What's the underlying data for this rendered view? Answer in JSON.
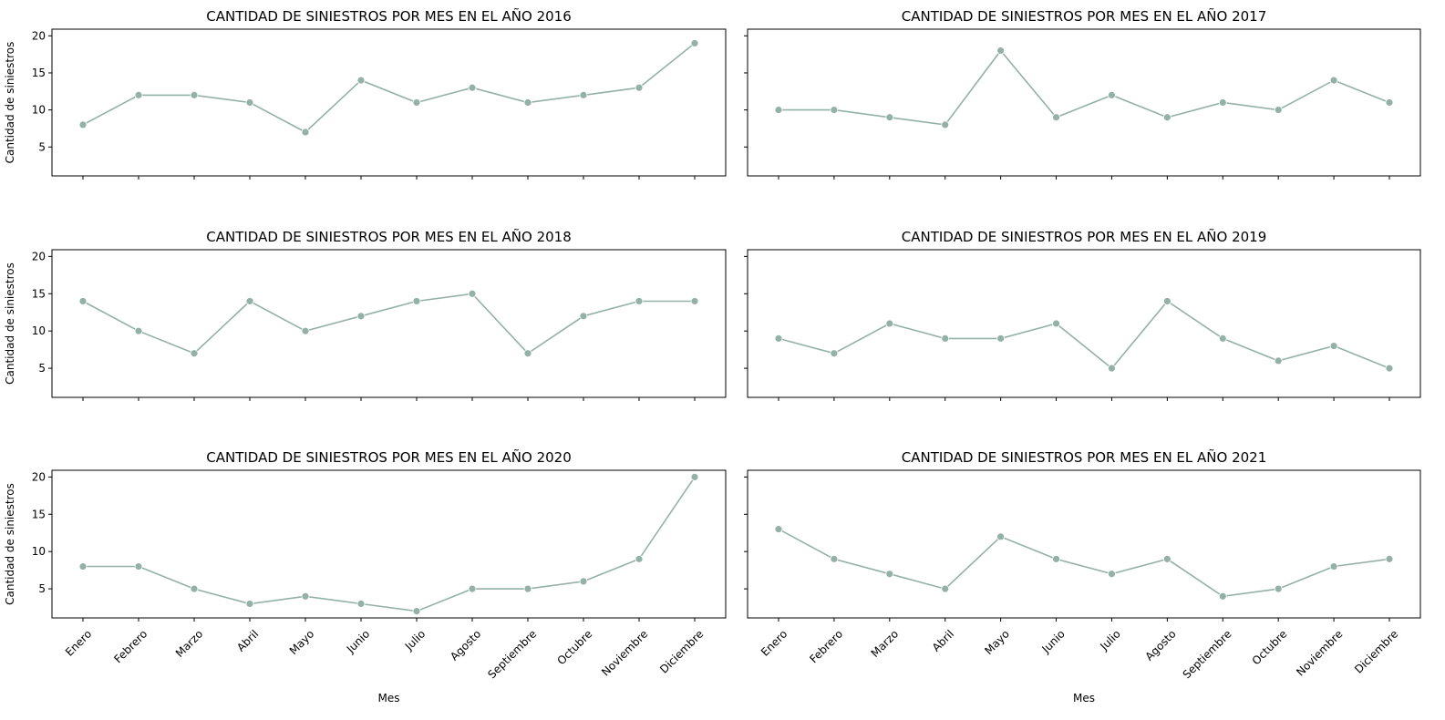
{
  "style": {
    "line_color": "#93b1a7",
    "marker_color": "#93b1a7",
    "axis_color": "#000000",
    "background": "#ffffff"
  },
  "chart_data": [
    {
      "type": "line",
      "title": "CANTIDAD DE SINIESTROS POR MES EN EL AÑO 2016",
      "xlabel": "",
      "ylabel": "Cantidad de siniestros",
      "categories": [
        "Enero",
        "Febrero",
        "Marzo",
        "Abril",
        "Mayo",
        "Junio",
        "Julio",
        "Agosto",
        "Septiembre",
        "Octubre",
        "Noviembre",
        "Diciembre"
      ],
      "values": [
        8,
        12,
        12,
        11,
        7,
        14,
        11,
        13,
        11,
        12,
        13,
        19
      ],
      "ylim": [
        1.1,
        20.9
      ],
      "yticks": [
        5,
        10,
        15,
        20
      ],
      "show_xticklabels": false,
      "show_yticklabels": true
    },
    {
      "type": "line",
      "title": "CANTIDAD DE SINIESTROS POR MES EN EL AÑO 2017",
      "xlabel": "",
      "ylabel": "",
      "categories": [
        "Enero",
        "Febrero",
        "Marzo",
        "Abril",
        "Mayo",
        "Junio",
        "Julio",
        "Agosto",
        "Septiembre",
        "Octubre",
        "Noviembre",
        "Diciembre"
      ],
      "values": [
        10,
        10,
        9,
        8,
        18,
        9,
        12,
        9,
        11,
        10,
        14,
        11
      ],
      "ylim": [
        1.1,
        20.9
      ],
      "yticks": [
        5,
        10,
        15,
        20
      ],
      "show_xticklabels": false,
      "show_yticklabels": false
    },
    {
      "type": "line",
      "title": "CANTIDAD DE SINIESTROS POR MES EN EL AÑO 2018",
      "xlabel": "",
      "ylabel": "Cantidad de siniestros",
      "categories": [
        "Enero",
        "Febrero",
        "Marzo",
        "Abril",
        "Mayo",
        "Junio",
        "Julio",
        "Agosto",
        "Septiembre",
        "Octubre",
        "Noviembre",
        "Diciembre"
      ],
      "values": [
        14,
        10,
        7,
        14,
        10,
        12,
        14,
        15,
        7,
        12,
        14,
        14
      ],
      "ylim": [
        1.1,
        20.9
      ],
      "yticks": [
        5,
        10,
        15,
        20
      ],
      "show_xticklabels": false,
      "show_yticklabels": true
    },
    {
      "type": "line",
      "title": "CANTIDAD DE SINIESTROS POR MES EN EL AÑO 2019",
      "xlabel": "",
      "ylabel": "",
      "categories": [
        "Enero",
        "Febrero",
        "Marzo",
        "Abril",
        "Mayo",
        "Junio",
        "Julio",
        "Agosto",
        "Septiembre",
        "Octubre",
        "Noviembre",
        "Diciembre"
      ],
      "values": [
        9,
        7,
        11,
        9,
        9,
        11,
        5,
        14,
        9,
        6,
        8,
        5
      ],
      "ylim": [
        1.1,
        20.9
      ],
      "yticks": [
        5,
        10,
        15,
        20
      ],
      "show_xticklabels": false,
      "show_yticklabels": false
    },
    {
      "type": "line",
      "title": "CANTIDAD DE SINIESTROS POR MES EN EL AÑO 2020",
      "xlabel": "Mes",
      "ylabel": "Cantidad de siniestros",
      "categories": [
        "Enero",
        "Febrero",
        "Marzo",
        "Abril",
        "Mayo",
        "Junio",
        "Julio",
        "Agosto",
        "Septiembre",
        "Octubre",
        "Noviembre",
        "Diciembre"
      ],
      "values": [
        8,
        8,
        5,
        3,
        4,
        3,
        2,
        5,
        5,
        6,
        9,
        20
      ],
      "ylim": [
        1.1,
        20.9
      ],
      "yticks": [
        5,
        10,
        15,
        20
      ],
      "show_xticklabels": true,
      "show_yticklabels": true
    },
    {
      "type": "line",
      "title": "CANTIDAD DE SINIESTROS POR MES EN EL AÑO 2021",
      "xlabel": "Mes",
      "ylabel": "",
      "categories": [
        "Enero",
        "Febrero",
        "Marzo",
        "Abril",
        "Mayo",
        "Junio",
        "Julio",
        "Agosto",
        "Septiembre",
        "Octubre",
        "Noviembre",
        "Diciembre"
      ],
      "values": [
        13,
        9,
        7,
        5,
        12,
        9,
        7,
        9,
        4,
        5,
        8,
        9
      ],
      "ylim": [
        1.1,
        20.9
      ],
      "yticks": [
        5,
        10,
        15,
        20
      ],
      "show_xticklabels": true,
      "show_yticklabels": false
    }
  ]
}
